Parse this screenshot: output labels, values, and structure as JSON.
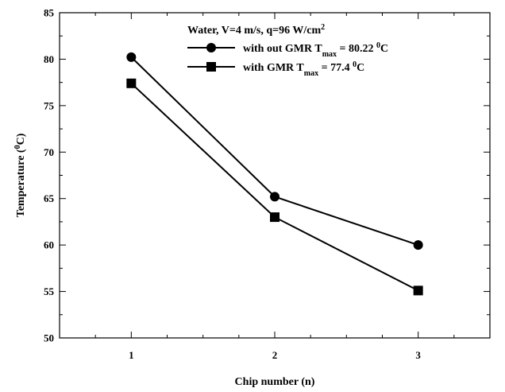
{
  "chart_data": {
    "type": "line",
    "title": "",
    "xlabel": "Chip number (n)",
    "ylabel_main": "Temperature (",
    "ylabel_sup": "0",
    "ylabel_end": "C)",
    "xlim": [
      0.5,
      3.5
    ],
    "ylim": [
      50,
      85
    ],
    "x_ticks": [
      1,
      2,
      3
    ],
    "x_minor_step": 0.25,
    "y_ticks": [
      50,
      55,
      60,
      65,
      70,
      75,
      80,
      85
    ],
    "y_minor_step": 2.5,
    "grid": false,
    "legend": {
      "placement": "top-center",
      "header_main": "Water, V=4 m/s, q=96 W/cm",
      "header_sup": "2"
    },
    "series": [
      {
        "name_pre": "with out GMR T",
        "name_sub": "max",
        "name_mid": " = 80.22 ",
        "name_sup": "0",
        "name_post": "C",
        "marker": "circle",
        "color": "#000000",
        "x": [
          1,
          2,
          3
        ],
        "y": [
          80.22,
          65.2,
          60.0
        ]
      },
      {
        "name_pre": "with GMR T",
        "name_sub": "max",
        "name_mid": " = 77.4 ",
        "name_sup": "0",
        "name_post": "C",
        "marker": "square",
        "color": "#000000",
        "x": [
          1,
          2,
          3
        ],
        "y": [
          77.4,
          63.0,
          55.1
        ]
      }
    ]
  }
}
